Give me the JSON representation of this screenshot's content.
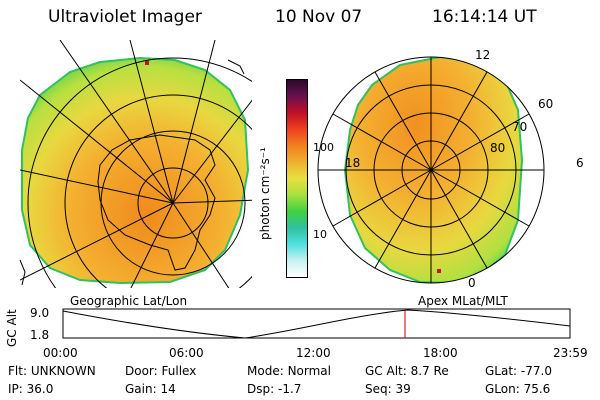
{
  "header": {
    "instrument": "Ultraviolet Imager",
    "date": "10 Nov 07",
    "time": "16:14:14 UT"
  },
  "left_panel": {
    "caption": "Geographic Lat/Lon"
  },
  "right_panel": {
    "caption": "Apex  MLat/MLT",
    "mlt_labels": {
      "top": "12",
      "left": "18",
      "right": "6",
      "bottom": "0"
    },
    "mlat_labels": [
      "60",
      "70",
      "80"
    ]
  },
  "colorbar": {
    "unit": "photon cm⁻²s⁻¹",
    "ticks": [
      "100",
      "10"
    ],
    "scale": "log",
    "colors": [
      "#2a0a2a",
      "#6a1050",
      "#c01028",
      "#f04020",
      "#f08020",
      "#f0b030",
      "#e8e040",
      "#a8e040",
      "#40d040",
      "#30c0a0",
      "#50e0e0",
      "#c8f0f0",
      "#ffffff"
    ]
  },
  "altitude_plot": {
    "ylabel": "GC Alt",
    "yticks": [
      "9.0",
      "1.8"
    ],
    "xticks": [
      "00:00",
      "06:00",
      "12:00",
      "18:00",
      "23:59"
    ],
    "marker_time": "16:14",
    "marker_color": "#cc0000"
  },
  "info": {
    "row1": [
      {
        "label": "Flt:",
        "value": "UNKNOWN"
      },
      {
        "label": "Door:",
        "value": "Fullex"
      },
      {
        "label": "Mode:",
        "value": "Normal"
      },
      {
        "label": "GC Alt:",
        "value": "8.7 Re"
      },
      {
        "label": "GLat:",
        "value": "-77.0"
      }
    ],
    "row2": [
      {
        "label": "IP:",
        "value": "36.0"
      },
      {
        "label": "Gain:",
        "value": "14"
      },
      {
        "label": "Dsp:",
        "value": "-1.7"
      },
      {
        "label": "Seq:",
        "value": "39"
      },
      {
        "label": "GLon:",
        "value": "75.6"
      }
    ]
  }
}
